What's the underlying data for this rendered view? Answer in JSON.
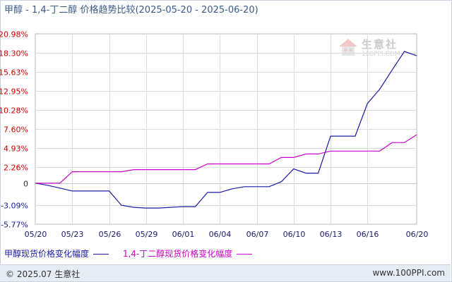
{
  "header": {
    "title": "甲醇 - 1,4-丁二醇 价格趋势比较",
    "range": "(2025-05-20 - 2025-06-20)"
  },
  "watermark": {
    "name": "生意社",
    "url": "100PPI.COM"
  },
  "footer": {
    "left": "© 2025.07 生意社",
    "right": "www.100PPI.com"
  },
  "colors": {
    "series0": "#1a1aa6",
    "series1": "#cc00cc",
    "grid": "#dcdcdc",
    "axis": "#555555",
    "tick_red": "#cc0000",
    "tick_blue": "#1a1aa6"
  },
  "chart_data": {
    "type": "line",
    "x_ticks": [
      "05/20",
      "05/23",
      "05/26",
      "05/29",
      "06/01",
      "06/04",
      "06/07",
      "06/10",
      "06/13",
      "06/16",
      "06/20"
    ],
    "y_ticks": [
      "20.98%",
      "18.30%",
      "15.63%",
      "12.95%",
      "10.28%",
      "7.60%",
      "4.93%",
      "2.26%",
      "0",
      "-3.09%",
      "-5.77%"
    ],
    "ylim": [
      -5.77,
      20.98
    ],
    "grid": true,
    "legend_position": "bottom",
    "series": [
      {
        "name": "甲醇现货价格变化幅度",
        "color": "#1a1aa6",
        "points": [
          [
            "05/20",
            0
          ],
          [
            "05/21",
            -0.3
          ],
          [
            "05/22",
            -0.7
          ],
          [
            "05/23",
            -1.1
          ],
          [
            "05/24",
            -1.1
          ],
          [
            "05/25",
            -1.1
          ],
          [
            "05/26",
            -1.1
          ],
          [
            "05/27",
            -3.1
          ],
          [
            "05/28",
            -3.4
          ],
          [
            "05/29",
            -3.5
          ],
          [
            "05/30",
            -3.5
          ],
          [
            "05/31",
            -3.4
          ],
          [
            "06/01",
            -3.3
          ],
          [
            "06/02",
            -3.3
          ],
          [
            "06/03",
            -1.3
          ],
          [
            "06/04",
            -1.3
          ],
          [
            "06/05",
            -0.8
          ],
          [
            "06/06",
            -0.5
          ],
          [
            "06/07",
            -0.5
          ],
          [
            "06/08",
            -0.5
          ],
          [
            "06/09",
            0.2
          ],
          [
            "06/10",
            2.0
          ],
          [
            "06/11",
            1.4
          ],
          [
            "06/12",
            1.4
          ],
          [
            "06/13",
            6.6
          ],
          [
            "06/14",
            6.6
          ],
          [
            "06/15",
            6.6
          ],
          [
            "06/16",
            11.2
          ],
          [
            "06/17",
            13.2
          ],
          [
            "06/18",
            15.9
          ],
          [
            "06/19",
            18.5
          ],
          [
            "06/20",
            17.9
          ]
        ]
      },
      {
        "name": "1,4-丁二醇现货价格变化幅度",
        "color": "#cc00cc",
        "points": [
          [
            "05/20",
            0
          ],
          [
            "05/21",
            0
          ],
          [
            "05/22",
            0
          ],
          [
            "05/23",
            1.6
          ],
          [
            "05/24",
            1.6
          ],
          [
            "05/25",
            1.6
          ],
          [
            "05/26",
            1.6
          ],
          [
            "05/27",
            1.6
          ],
          [
            "05/28",
            1.9
          ],
          [
            "05/29",
            1.9
          ],
          [
            "05/30",
            1.9
          ],
          [
            "05/31",
            1.9
          ],
          [
            "06/01",
            1.9
          ],
          [
            "06/02",
            1.9
          ],
          [
            "06/03",
            2.7
          ],
          [
            "06/04",
            2.7
          ],
          [
            "06/05",
            2.7
          ],
          [
            "06/06",
            2.7
          ],
          [
            "06/07",
            2.7
          ],
          [
            "06/08",
            2.7
          ],
          [
            "06/09",
            3.6
          ],
          [
            "06/10",
            3.6
          ],
          [
            "06/11",
            4.1
          ],
          [
            "06/12",
            4.1
          ],
          [
            "06/13",
            4.5
          ],
          [
            "06/14",
            4.5
          ],
          [
            "06/15",
            4.5
          ],
          [
            "06/16",
            4.5
          ],
          [
            "06/17",
            4.5
          ],
          [
            "06/18",
            5.7
          ],
          [
            "06/19",
            5.7
          ],
          [
            "06/20",
            6.8
          ]
        ]
      }
    ]
  }
}
